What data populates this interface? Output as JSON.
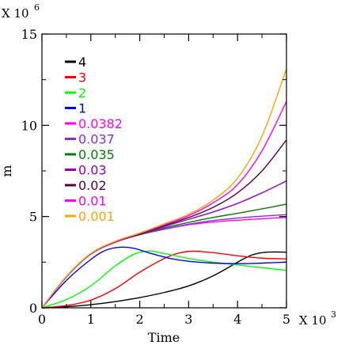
{
  "chart_data": {
    "type": "line",
    "xlabel": "Time",
    "ylabel": "m",
    "x_multiplier": {
      "base": "X 10",
      "exponent": "3"
    },
    "y_multiplier": {
      "base": "X 10",
      "exponent": "6"
    },
    "xlim": [
      0,
      5
    ],
    "ylim": [
      0,
      15
    ],
    "x_ticks": [
      0,
      1,
      2,
      3,
      4,
      5
    ],
    "y_ticks": [
      0,
      5,
      10,
      15
    ],
    "x_tick_labels": [
      "0",
      "1",
      "2",
      "3",
      "4",
      "5"
    ],
    "y_tick_labels": [
      "0",
      "5",
      "10",
      "15"
    ],
    "grid": false,
    "legend_position": "top-left",
    "series": [
      {
        "name": "4",
        "color": "#000000",
        "x": [
          0,
          0.5,
          1,
          1.5,
          2,
          2.5,
          3,
          3.5,
          4,
          4.3,
          4.6,
          5
        ],
        "y": [
          0,
          0.06,
          0.17,
          0.34,
          0.56,
          0.84,
          1.2,
          1.75,
          2.5,
          2.9,
          3.05,
          3.05
        ]
      },
      {
        "name": "3",
        "color": "#ff0000",
        "x": [
          0,
          0.5,
          1,
          1.5,
          2,
          2.5,
          2.8,
          3.1,
          3.5,
          4,
          4.5,
          5
        ],
        "y": [
          0,
          0.12,
          0.42,
          1.05,
          1.95,
          2.7,
          3.0,
          3.1,
          3.02,
          2.85,
          2.72,
          2.68
        ]
      },
      {
        "name": "2",
        "color": "#00ff00",
        "x": [
          0,
          0.5,
          1,
          1.5,
          1.9,
          2.2,
          2.5,
          3,
          3.5,
          4,
          4.5,
          5
        ],
        "y": [
          0,
          0.45,
          1.2,
          2.3,
          2.95,
          3.1,
          2.98,
          2.7,
          2.5,
          2.35,
          2.2,
          2.05
        ]
      },
      {
        "name": "1",
        "color": "#0000ff",
        "x": [
          0,
          0.5,
          1,
          1.3,
          1.6,
          1.9,
          2.2,
          2.6,
          3,
          3.5,
          4,
          4.5,
          5
        ],
        "y": [
          0,
          1.5,
          2.65,
          3.15,
          3.32,
          3.25,
          3.0,
          2.72,
          2.55,
          2.45,
          2.42,
          2.45,
          2.5
        ]
      },
      {
        "name": "0.0382",
        "color": "#ff00ff",
        "x": [
          0,
          0.5,
          1,
          1.5,
          2,
          2.5,
          3,
          3.5,
          4,
          4.5,
          5
        ],
        "y": [
          0,
          1.7,
          2.95,
          3.6,
          4.0,
          4.3,
          4.55,
          4.7,
          4.8,
          4.88,
          4.95
        ]
      },
      {
        "name": "0.037",
        "color": "#8a2be2",
        "x": [
          0,
          0.5,
          1,
          1.5,
          2,
          2.5,
          3,
          3.5,
          4,
          4.5,
          5
        ],
        "y": [
          0,
          1.7,
          2.95,
          3.6,
          4.0,
          4.32,
          4.58,
          4.78,
          4.92,
          5.02,
          5.1
        ]
      },
      {
        "name": "0.035",
        "color": "#008000",
        "x": [
          0,
          0.5,
          1,
          1.5,
          2,
          2.5,
          3,
          3.5,
          4,
          4.5,
          5
        ],
        "y": [
          0,
          1.7,
          2.95,
          3.6,
          4.02,
          4.38,
          4.68,
          4.95,
          5.18,
          5.42,
          5.68
        ]
      },
      {
        "name": "0.03",
        "color": "#9400d3",
        "x": [
          0,
          0.5,
          1,
          1.5,
          2,
          2.5,
          3,
          3.5,
          4,
          4.5,
          5
        ],
        "y": [
          0,
          1.7,
          2.95,
          3.6,
          4.05,
          4.45,
          4.85,
          5.25,
          5.72,
          6.3,
          6.95
        ]
      },
      {
        "name": "0.02",
        "color": "#5a0040",
        "x": [
          0,
          0.5,
          1,
          1.5,
          2,
          2.5,
          3,
          3.5,
          4,
          4.5,
          5
        ],
        "y": [
          0,
          1.7,
          2.95,
          3.6,
          4.05,
          4.5,
          4.95,
          5.5,
          6.3,
          7.5,
          9.2
        ]
      },
      {
        "name": "0.01",
        "color": "#ff00ff",
        "x": [
          0,
          0.5,
          1,
          1.5,
          2,
          2.5,
          3,
          3.5,
          4,
          4.5,
          5
        ],
        "y": [
          0,
          1.72,
          2.97,
          3.62,
          4.08,
          4.55,
          5.05,
          5.75,
          6.75,
          8.6,
          11.3
        ]
      },
      {
        "name": "0.001",
        "color": "#ffa500",
        "x": [
          0,
          0.5,
          1,
          1.5,
          2,
          2.5,
          3,
          3.5,
          4,
          4.5,
          5
        ],
        "y": [
          0,
          1.72,
          2.98,
          3.65,
          4.1,
          4.6,
          5.12,
          5.9,
          7.1,
          9.4,
          13.1
        ]
      }
    ]
  }
}
